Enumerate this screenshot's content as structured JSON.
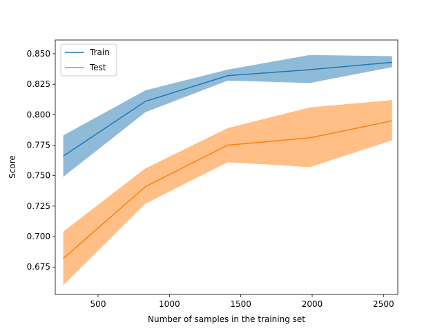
{
  "chart_data": {
    "type": "line",
    "title": "",
    "xlabel": "Number of samples in the training set",
    "ylabel": "Score",
    "xlim": [
      200,
      2600
    ],
    "ylim": [
      0.6525,
      0.8613
    ],
    "xticks": [
      500,
      1000,
      1500,
      2000,
      2500
    ],
    "xtick_labels": [
      "500",
      "1000",
      "1500",
      "2000",
      "2500"
    ],
    "yticks": [
      0.675,
      0.7,
      0.725,
      0.75,
      0.775,
      0.8,
      0.825,
      0.85
    ],
    "ytick_labels": [
      "0.675",
      "0.700",
      "0.725",
      "0.750",
      "0.775",
      "0.800",
      "0.825",
      "0.850"
    ],
    "grid": false,
    "legend_position": "top-left",
    "x": [
      256,
      832,
      1408,
      1984,
      2560
    ],
    "series": [
      {
        "name": "Train",
        "color": "#1f77b4",
        "band_color": "#1f77b4",
        "values": [
          0.766,
          0.811,
          0.832,
          0.837,
          0.843
        ],
        "upper": [
          0.783,
          0.82,
          0.837,
          0.849,
          0.848
        ],
        "lower": [
          0.749,
          0.802,
          0.828,
          0.826,
          0.839
        ]
      },
      {
        "name": "Test",
        "color": "#ff7f0e",
        "band_color": "#ff7f0e",
        "values": [
          0.682,
          0.741,
          0.775,
          0.781,
          0.795
        ],
        "upper": [
          0.704,
          0.756,
          0.789,
          0.806,
          0.812
        ],
        "lower": [
          0.66,
          0.727,
          0.761,
          0.757,
          0.779
        ]
      }
    ]
  }
}
